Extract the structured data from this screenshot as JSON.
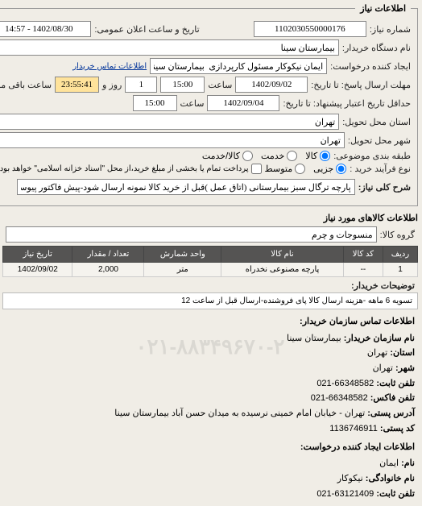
{
  "legend": "اطلاعات نیاز",
  "fields": {
    "need_no_label": "شماره نیاز:",
    "need_no": "1102030550000176",
    "announce_label": "تاریخ و ساعت اعلان عمومی:",
    "announce_value": "1402/08/30 - 14:57",
    "buyer_org_label": "نام دستگاه خریدار:",
    "buyer_org": "بیمارستان سینا",
    "requester_label": "ایجاد کننده درخواست:",
    "requester": "ایمان نیکوکار مسئول کارپردازی  بیمارستان سینا",
    "contact_link": "اطلاعات تماس خریدار",
    "deadline_to_label": "مهلت ارسال پاسخ: تا تاریخ:",
    "deadline_date": "1402/09/02",
    "time_label": "ساعت",
    "deadline_time": "15:00",
    "days_count": "1",
    "days_word": "روز و",
    "remain_time": "23:55:41",
    "remain_label": "ساعت باقی مانده",
    "validity_label": "حداقل تاریخ اعتبار پیشنهاد: تا تاریخ:",
    "validity_date": "1402/09/04",
    "validity_time": "15:00",
    "delivery_state_label": "استان محل تحویل:",
    "delivery_state": "تهران",
    "delivery_city_label": "شهر محل تحویل:",
    "delivery_city": "تهران",
    "category_label": "طبقه بندی موضوعی:",
    "cat_kala": "کالا",
    "cat_khadamat": "خدمت",
    "cat_kalakhadamat": "کالا/خدمت",
    "buy_process_label": "نوع فرآیند خرید :",
    "proc_metavaset": "متوسط",
    "proc_jozei": "جزیی",
    "pay_note_label": "پرداخت تمام یا بخشی از مبلغ خرید،از محل \"اسناد خزانه اسلامی\" خواهد بود.",
    "desc_label": "شرح کلی نیاز:",
    "desc_value": "پارچه ترگال سبز بیمارستانی (اتاق عمل )قبل از خرید کالا نمونه ارسال شود-پیش فاکتور پیوست گردد)"
  },
  "goods_section_title": "اطلاعات کالاهای مورد نیاز",
  "goods_group_label": "گروه کالا:",
  "goods_group": "منسوجات و چرم",
  "table": {
    "headers": [
      "ردیف",
      "کد کالا",
      "نام کالا",
      "واحد شمارش",
      "تعداد / مقدار",
      "تاریخ نیاز"
    ],
    "rows": [
      [
        "1",
        "--",
        "پارچه مصنوعی نخدراه",
        "متر",
        "2,000",
        "1402/09/02"
      ]
    ]
  },
  "buyer_note_label": "توضیحات خریدار:",
  "buyer_note": "تسویه 6 ماهه -هزینه ارسال کالا پای فروشنده-ارسال قبل از ساعت 12",
  "contact": {
    "header": "اطلاعات تماس سازمان خریدار:",
    "org_label": "نام سازمان خریدار:",
    "org": "بیمارستان سینا",
    "state_label": "استان:",
    "state": "تهران",
    "city_label": "شهر:",
    "city": "تهران",
    "phone_label": "تلفن ثابت:",
    "phone": "66348582-021",
    "fax_label": "تلفن فاکس:",
    "fax": "66348582-021",
    "addr_label": "آدرس پستی:",
    "addr": "تهران - خیابان امام خمینی نرسیده به میدان حسن آباد بیمارستان سینا",
    "zip_label": "کد پستی:",
    "zip": "1136746911",
    "req_header": "اطلاعات ایجاد کننده درخواست:",
    "name_label": "نام:",
    "name": "ایمان",
    "lname_label": "نام خانوادگی:",
    "lname": "نیکوکار",
    "rphone_label": "تلفن ثابت:",
    "rphone": "63121409-021",
    "watermark": "۰۲۱-۸۸۳۴۹۶۷۰-۲"
  }
}
